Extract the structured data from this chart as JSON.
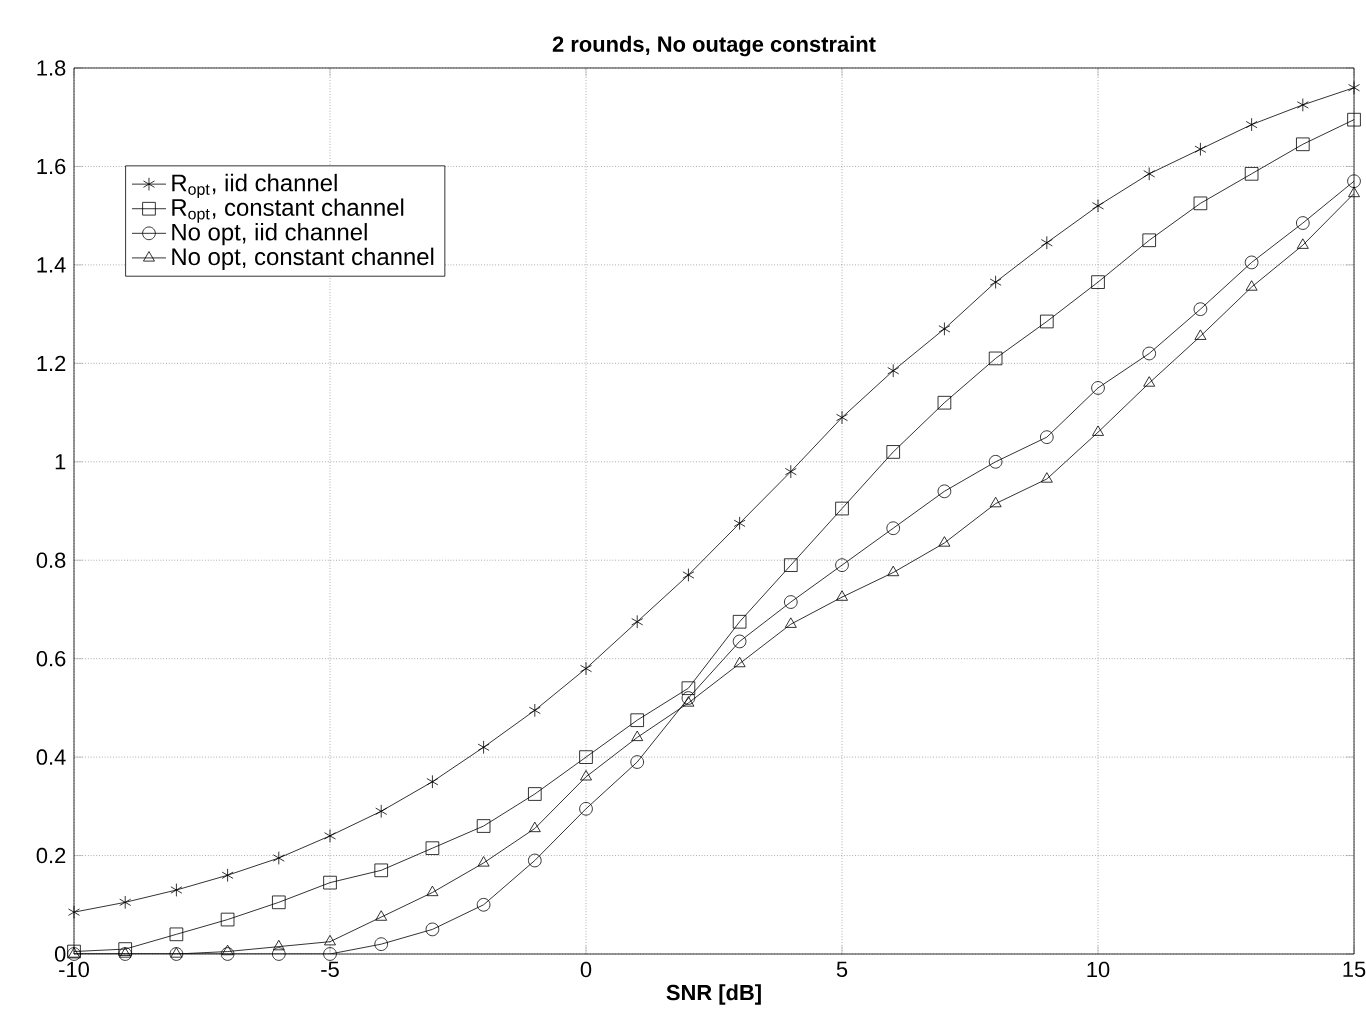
{
  "chart_data": {
    "type": "line",
    "title": "2 rounds, No outage constraint",
    "xlabel": "SNR [dB]",
    "x": [
      -10,
      -9,
      -8,
      -7,
      -6,
      -5,
      -4,
      -3,
      -2,
      -1,
      0,
      1,
      2,
      3,
      4,
      5,
      6,
      7,
      8,
      9,
      10,
      11,
      12,
      13,
      14,
      15
    ],
    "xlim": [
      -10,
      15
    ],
    "xticks": [
      -10,
      -5,
      0,
      5,
      10,
      15
    ],
    "ylim": [
      0,
      1.8
    ],
    "yticks": [
      0,
      0.2,
      0.4,
      0.6,
      0.8,
      1,
      1.2,
      1.4,
      1.6,
      1.8
    ],
    "grid": true,
    "legend": "top left",
    "line_style": "solid",
    "series": [
      {
        "name": "R$_{opt}$, iid channel",
        "color": "#000000",
        "marker": "cross",
        "values": [
          0.085,
          0.105,
          0.13,
          0.16,
          0.195,
          0.24,
          0.29,
          0.35,
          0.42,
          0.495,
          0.58,
          0.675,
          0.77,
          0.875,
          0.98,
          1.09,
          1.185,
          1.27,
          1.365,
          1.445,
          1.52,
          1.585,
          1.635,
          1.685,
          1.725,
          1.76
        ]
      },
      {
        "name": "R$_{opt}$, constant channel",
        "color": "#000000",
        "marker": "square",
        "values": [
          0.005,
          0.01,
          0.04,
          0.07,
          0.105,
          0.145,
          0.17,
          0.215,
          0.26,
          0.325,
          0.4,
          0.475,
          0.54,
          0.675,
          0.79,
          0.905,
          1.02,
          1.12,
          1.21,
          1.285,
          1.365,
          1.45,
          1.525,
          1.585,
          1.645,
          1.695
        ]
      },
      {
        "name": "No opt, iid channel",
        "color": "#000000",
        "marker": "circle",
        "values": [
          0,
          0,
          0,
          0,
          0,
          0,
          0.02,
          0.05,
          0.1,
          0.19,
          0.295,
          0.39,
          0.52,
          0.635,
          0.715,
          0.79,
          0.865,
          0.94,
          1.0,
          1.05,
          1.15,
          1.22,
          1.31,
          1.405,
          1.485,
          1.57
        ]
      },
      {
        "name": "No opt, constant channel",
        "color": "#000000",
        "marker": "triangle",
        "values": [
          0,
          0,
          0,
          0.005,
          0.015,
          0.025,
          0.075,
          0.125,
          0.185,
          0.255,
          0.36,
          0.44,
          0.51,
          0.59,
          0.67,
          0.725,
          0.775,
          0.835,
          0.915,
          0.965,
          1.06,
          1.16,
          1.255,
          1.355,
          1.44,
          1.545
        ]
      }
    ]
  }
}
